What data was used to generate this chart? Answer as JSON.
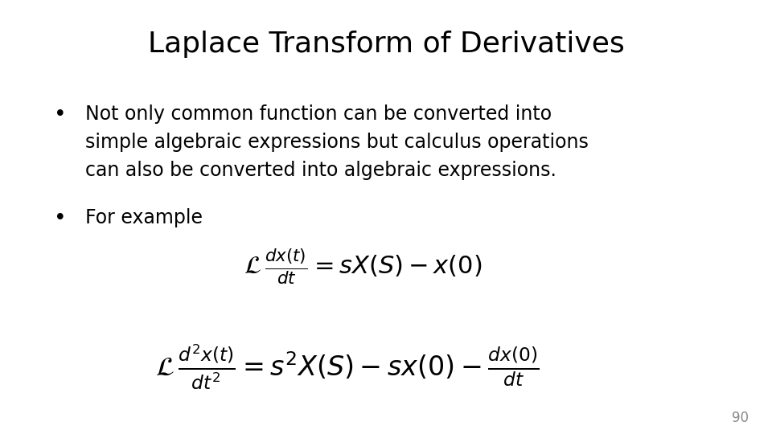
{
  "title": "Laplace Transform of Derivatives",
  "title_fontsize": 26,
  "title_fontfamily": "DejaVu Sans",
  "background_color": "#ffffff",
  "text_color": "#000000",
  "bullet1": "Not only common function can be converted into simple algebraic expressions but calculus operations can also be converted into algebraic expressions.",
  "bullet2": "For example",
  "eq1": "\\mathcal{L}\\,\\frac{dx(t)}{dt} = sX(S) - x(0)",
  "eq2": "\\mathcal{L}\\,\\frac{d^2x(t)}{dt^2} = s^2 X(S) - sx(0) - \\frac{dx(0)}{dt}",
  "page_number": "90",
  "body_fontsize": 17,
  "eq_fontsize": 18
}
